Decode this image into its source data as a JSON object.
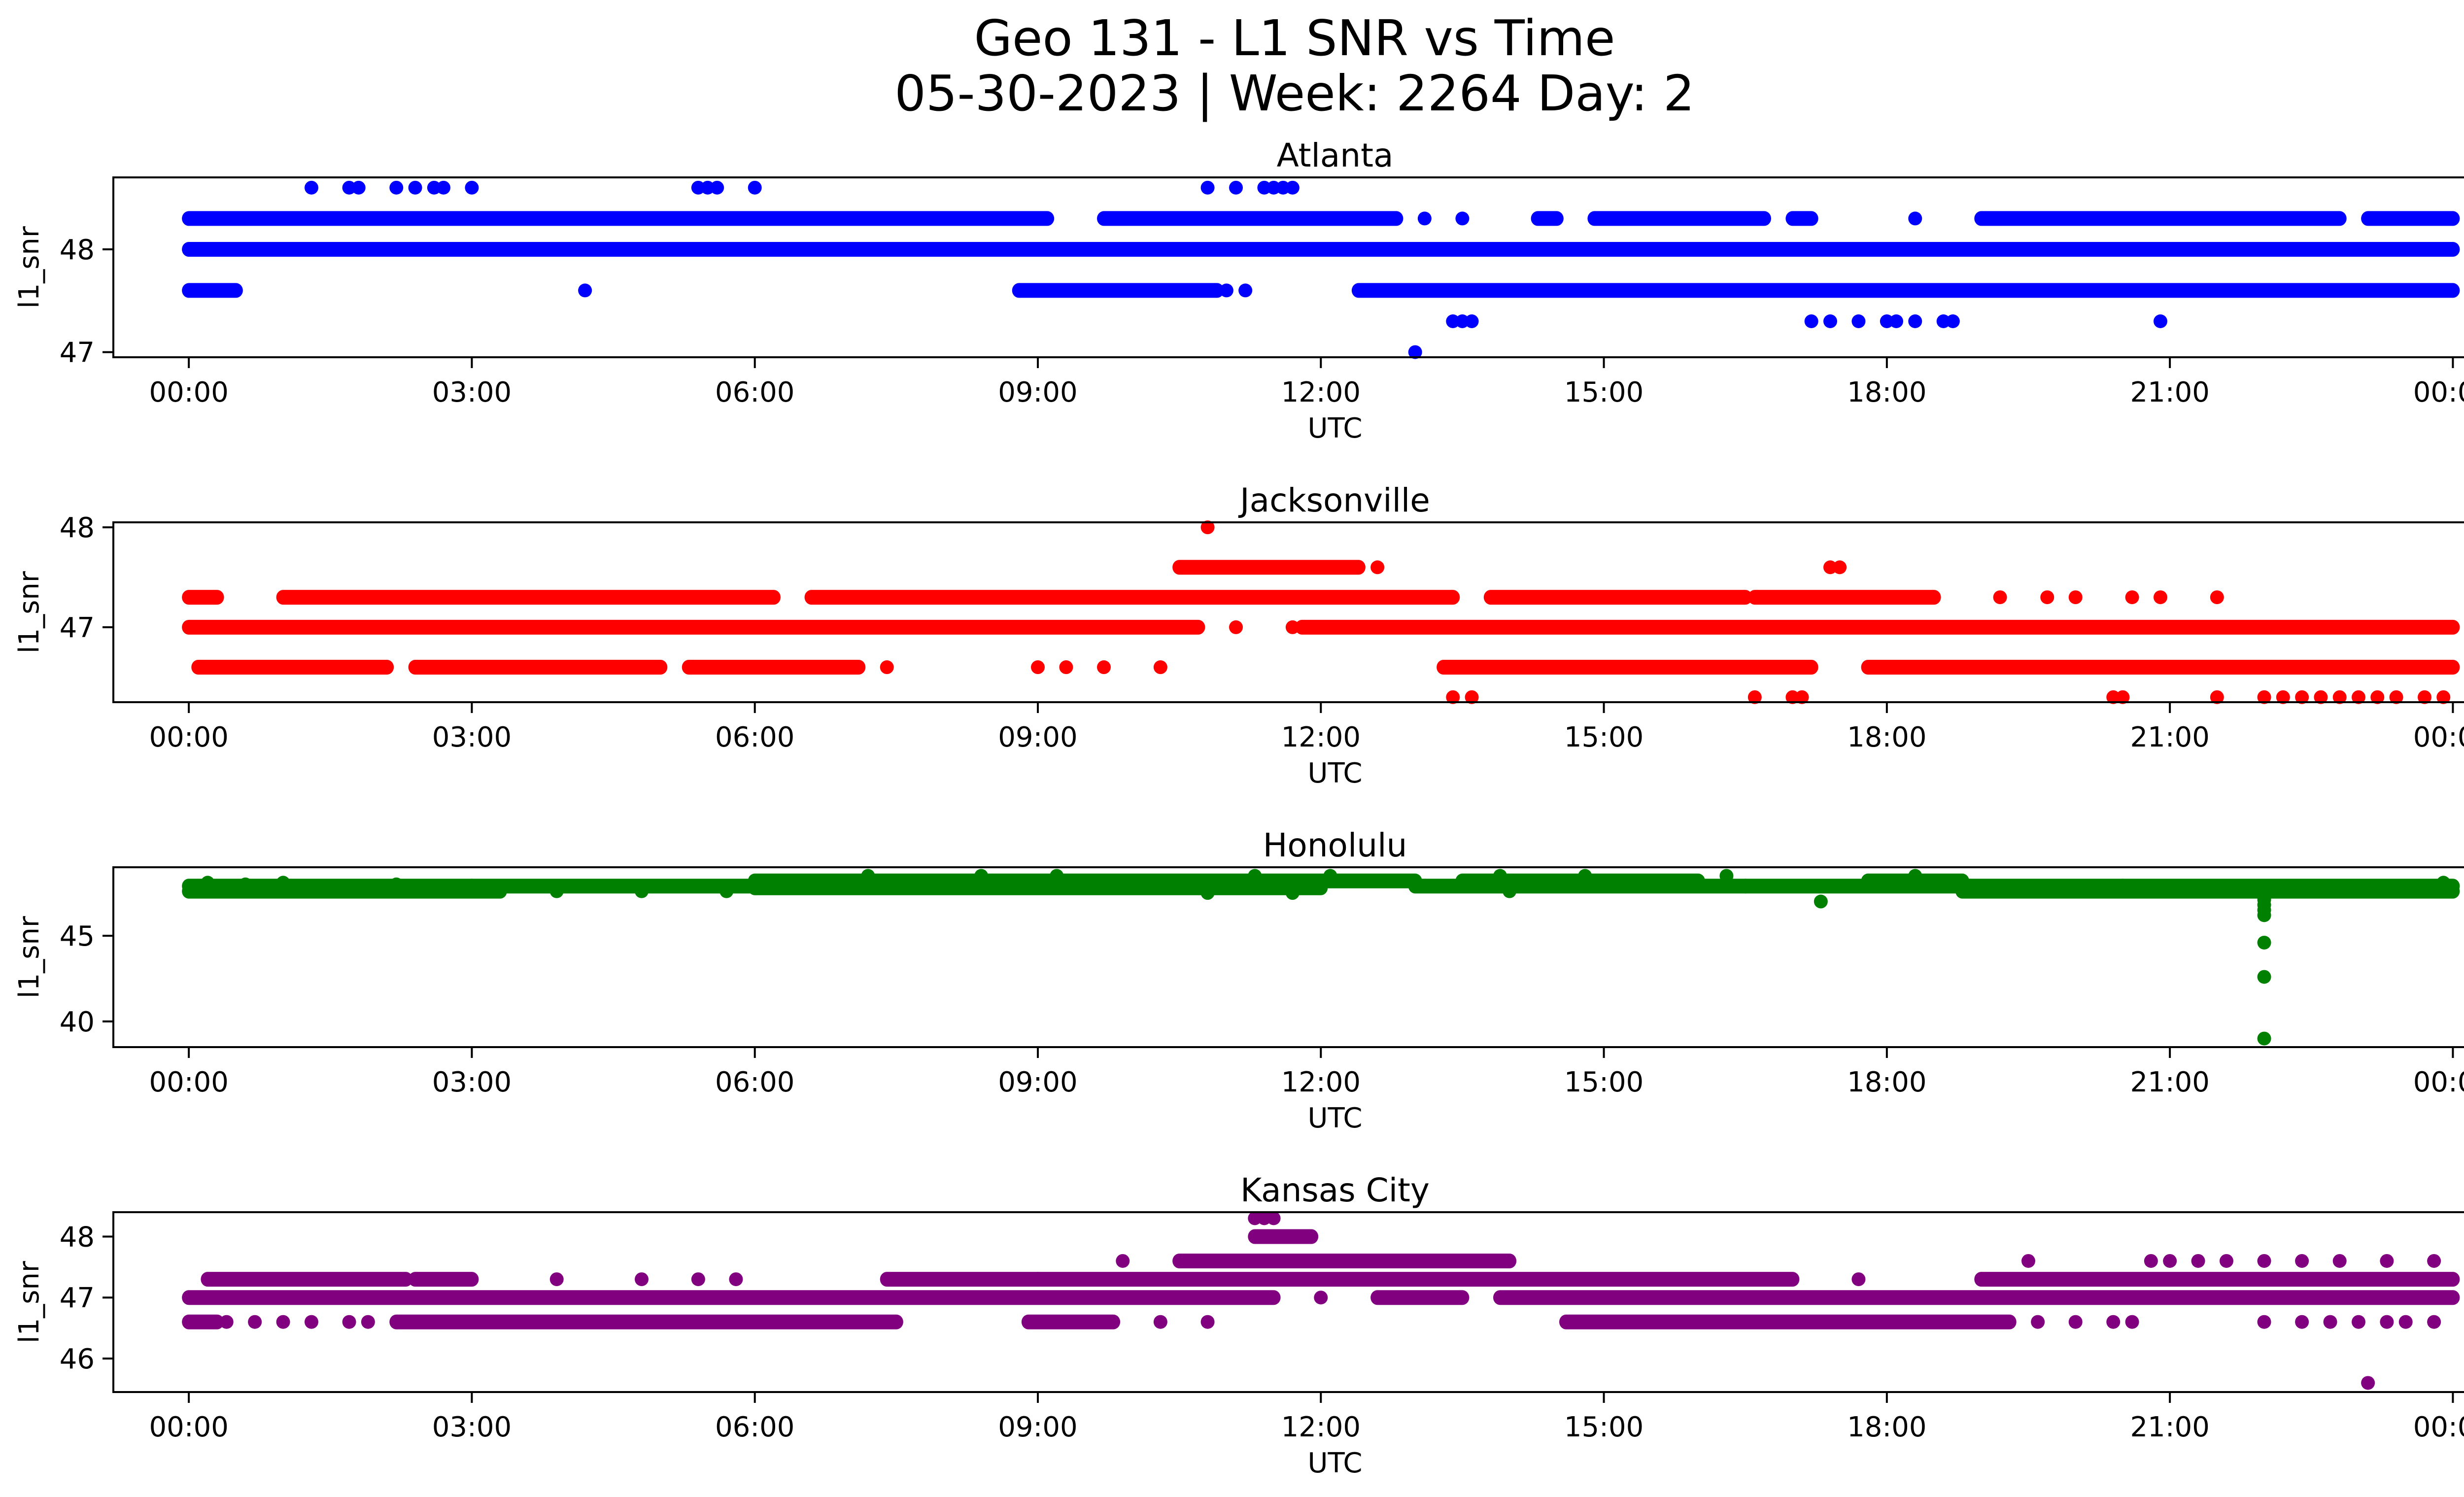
{
  "figure": {
    "title_line1": "Geo 131 - L1 SNR vs Time",
    "title_line2": "05-30-2023 | Week: 2264 Day: 2"
  },
  "chart_data": [
    {
      "type": "scatter",
      "title": "Atlanta",
      "xlabel": "UTC",
      "ylabel": "l1_snr",
      "color": "#0000ff",
      "xlim": [
        -0.8,
        25.1
      ],
      "ylim": [
        46.95,
        48.7
      ],
      "xticks": [
        "00:00",
        "03:00",
        "06:00",
        "09:00",
        "12:00",
        "15:00",
        "18:00",
        "21:00",
        "00:00"
      ],
      "yticks": [
        47,
        48
      ],
      "bands": [
        {
          "y": 48.0,
          "segments": [
            [
              0.0,
              24.0
            ]
          ]
        },
        {
          "y": 48.3,
          "segments": [
            [
              0.0,
              9.1
            ],
            [
              9.7,
              12.8
            ],
            [
              14.3,
              14.5
            ],
            [
              14.9,
              16.7
            ],
            [
              17.0,
              17.2
            ],
            [
              19.0,
              22.8
            ],
            [
              23.1,
              24.0
            ]
          ]
        },
        {
          "y": 47.6,
          "segments": [
            [
              0.0,
              0.5
            ],
            [
              8.8,
              10.9
            ],
            [
              12.4,
              24.0
            ]
          ]
        }
      ],
      "points": [
        {
          "x": 1.3,
          "y": 48.6
        },
        {
          "x": 1.7,
          "y": 48.6
        },
        {
          "x": 1.8,
          "y": 48.6
        },
        {
          "x": 2.2,
          "y": 48.6
        },
        {
          "x": 2.4,
          "y": 48.6
        },
        {
          "x": 2.6,
          "y": 48.6
        },
        {
          "x": 2.7,
          "y": 48.6
        },
        {
          "x": 3.0,
          "y": 48.6
        },
        {
          "x": 5.4,
          "y": 48.6
        },
        {
          "x": 5.5,
          "y": 48.6
        },
        {
          "x": 5.6,
          "y": 48.6
        },
        {
          "x": 6.0,
          "y": 48.6
        },
        {
          "x": 10.8,
          "y": 48.6
        },
        {
          "x": 11.1,
          "y": 48.6
        },
        {
          "x": 11.4,
          "y": 48.6
        },
        {
          "x": 11.5,
          "y": 48.6
        },
        {
          "x": 11.6,
          "y": 48.6
        },
        {
          "x": 11.7,
          "y": 48.6
        },
        {
          "x": 13.1,
          "y": 48.3
        },
        {
          "x": 13.5,
          "y": 48.3
        },
        {
          "x": 18.3,
          "y": 48.3
        },
        {
          "x": 4.2,
          "y": 47.6
        },
        {
          "x": 11.0,
          "y": 47.6
        },
        {
          "x": 11.2,
          "y": 47.6
        },
        {
          "x": 13.4,
          "y": 47.3
        },
        {
          "x": 13.5,
          "y": 47.3
        },
        {
          "x": 13.6,
          "y": 47.3
        },
        {
          "x": 17.2,
          "y": 47.3
        },
        {
          "x": 17.4,
          "y": 47.3
        },
        {
          "x": 17.7,
          "y": 47.3
        },
        {
          "x": 18.0,
          "y": 47.3
        },
        {
          "x": 18.1,
          "y": 47.3
        },
        {
          "x": 18.3,
          "y": 47.3
        },
        {
          "x": 18.6,
          "y": 47.3
        },
        {
          "x": 18.7,
          "y": 47.3
        },
        {
          "x": 20.9,
          "y": 47.3
        },
        {
          "x": 13.0,
          "y": 47.0
        }
      ]
    },
    {
      "type": "scatter",
      "title": "Jacksonville",
      "xlabel": "UTC",
      "ylabel": "l1_snr",
      "color": "#ff0000",
      "xlim": [
        -0.8,
        25.1
      ],
      "ylim": [
        46.25,
        48.05
      ],
      "xticks": [
        "00:00",
        "03:00",
        "06:00",
        "09:00",
        "12:00",
        "15:00",
        "18:00",
        "21:00",
        "00:00"
      ],
      "yticks": [
        47,
        48
      ],
      "bands": [
        {
          "y": 47.0,
          "segments": [
            [
              0.0,
              10.7
            ],
            [
              11.8,
              24.0
            ]
          ]
        },
        {
          "y": 47.3,
          "segments": [
            [
              0.0,
              0.3
            ],
            [
              1.0,
              6.2
            ],
            [
              6.6,
              13.4
            ],
            [
              13.8,
              16.5
            ],
            [
              16.6,
              18.5
            ]
          ]
        },
        {
          "y": 46.6,
          "segments": [
            [
              0.1,
              2.1
            ],
            [
              2.4,
              5.0
            ],
            [
              5.3,
              7.1
            ],
            [
              13.3,
              17.2
            ],
            [
              17.8,
              24.0
            ]
          ]
        },
        {
          "y": 47.6,
          "segments": [
            [
              10.5,
              12.4
            ]
          ]
        }
      ],
      "points": [
        {
          "x": 10.8,
          "y": 48.0
        },
        {
          "x": 12.6,
          "y": 47.6
        },
        {
          "x": 17.4,
          "y": 47.6
        },
        {
          "x": 17.5,
          "y": 47.6
        },
        {
          "x": 13.8,
          "y": 47.3
        },
        {
          "x": 14.4,
          "y": 47.3
        },
        {
          "x": 14.7,
          "y": 47.3
        },
        {
          "x": 19.2,
          "y": 47.3
        },
        {
          "x": 19.7,
          "y": 47.3
        },
        {
          "x": 20.0,
          "y": 47.3
        },
        {
          "x": 20.6,
          "y": 47.3
        },
        {
          "x": 20.9,
          "y": 47.3
        },
        {
          "x": 21.5,
          "y": 47.3
        },
        {
          "x": 10.6,
          "y": 47.0
        },
        {
          "x": 11.1,
          "y": 47.0
        },
        {
          "x": 11.7,
          "y": 47.0
        },
        {
          "x": 7.4,
          "y": 46.6
        },
        {
          "x": 9.0,
          "y": 46.6
        },
        {
          "x": 9.3,
          "y": 46.6
        },
        {
          "x": 9.7,
          "y": 46.6
        },
        {
          "x": 10.3,
          "y": 46.6
        },
        {
          "x": 13.4,
          "y": 46.3
        },
        {
          "x": 13.6,
          "y": 46.3
        },
        {
          "x": 16.6,
          "y": 46.3
        },
        {
          "x": 17.0,
          "y": 46.3
        },
        {
          "x": 17.1,
          "y": 46.3
        },
        {
          "x": 20.4,
          "y": 46.3
        },
        {
          "x": 20.5,
          "y": 46.3
        },
        {
          "x": 21.5,
          "y": 46.3
        },
        {
          "x": 22.0,
          "y": 46.3
        },
        {
          "x": 22.2,
          "y": 46.3
        },
        {
          "x": 22.4,
          "y": 46.3
        },
        {
          "x": 22.6,
          "y": 46.3
        },
        {
          "x": 22.8,
          "y": 46.3
        },
        {
          "x": 23.0,
          "y": 46.3
        },
        {
          "x": 23.2,
          "y": 46.3
        },
        {
          "x": 23.4,
          "y": 46.3
        },
        {
          "x": 23.7,
          "y": 46.3
        },
        {
          "x": 23.9,
          "y": 46.3
        }
      ]
    },
    {
      "type": "scatter",
      "title": "Honolulu",
      "xlabel": "UTC",
      "ylabel": "l1_snr",
      "color": "#008000",
      "xlim": [
        -0.8,
        25.1
      ],
      "ylim": [
        38.5,
        49.0
      ],
      "xticks": [
        "00:00",
        "03:00",
        "06:00",
        "09:00",
        "12:00",
        "15:00",
        "18:00",
        "21:00",
        "00:00"
      ],
      "yticks": [
        40,
        45
      ],
      "bands": [
        {
          "y": 47.6,
          "segments": [
            [
              0.0,
              3.3
            ],
            [
              18.8,
              24.0
            ]
          ]
        },
        {
          "y": 47.9,
          "segments": [
            [
              0.0,
              3.0
            ],
            [
              3.0,
              6.0
            ],
            [
              13.0,
              16.5
            ],
            [
              16.5,
              20.5
            ],
            [
              20.5,
              24.0
            ]
          ]
        },
        {
          "y": 48.2,
          "segments": [
            [
              6.0,
              13.0
            ],
            [
              13.5,
              16.0
            ],
            [
              17.8,
              18.8
            ]
          ]
        },
        {
          "y": 47.8,
          "segments": [
            [
              6.0,
              12.0
            ]
          ]
        }
      ],
      "points": [
        {
          "x": 0.2,
          "y": 48.1
        },
        {
          "x": 0.6,
          "y": 48.0
        },
        {
          "x": 1.0,
          "y": 48.1
        },
        {
          "x": 2.2,
          "y": 48.0
        },
        {
          "x": 3.9,
          "y": 47.6
        },
        {
          "x": 4.8,
          "y": 47.6
        },
        {
          "x": 5.7,
          "y": 47.6
        },
        {
          "x": 7.2,
          "y": 48.5
        },
        {
          "x": 8.4,
          "y": 48.5
        },
        {
          "x": 9.2,
          "y": 48.5
        },
        {
          "x": 11.3,
          "y": 48.5
        },
        {
          "x": 12.1,
          "y": 48.5
        },
        {
          "x": 13.9,
          "y": 48.5
        },
        {
          "x": 14.8,
          "y": 48.5
        },
        {
          "x": 16.3,
          "y": 48.5
        },
        {
          "x": 18.3,
          "y": 48.5
        },
        {
          "x": 10.8,
          "y": 47.5
        },
        {
          "x": 11.7,
          "y": 47.5
        },
        {
          "x": 14.0,
          "y": 47.6
        },
        {
          "x": 17.3,
          "y": 47.0
        },
        {
          "x": 22.0,
          "y": 47.1
        },
        {
          "x": 22.0,
          "y": 46.8
        },
        {
          "x": 22.0,
          "y": 46.5
        },
        {
          "x": 22.0,
          "y": 46.2
        },
        {
          "x": 22.0,
          "y": 44.6
        },
        {
          "x": 22.0,
          "y": 42.6
        },
        {
          "x": 22.0,
          "y": 39.0
        },
        {
          "x": 23.9,
          "y": 48.1
        }
      ]
    },
    {
      "type": "scatter",
      "title": "Kansas City",
      "xlabel": "UTC",
      "ylabel": "l1_snr",
      "color": "#800080",
      "xlim": [
        -0.8,
        25.1
      ],
      "ylim": [
        45.45,
        48.4
      ],
      "xticks": [
        "00:00",
        "03:00",
        "06:00",
        "09:00",
        "12:00",
        "15:00",
        "18:00",
        "21:00",
        "00:00"
      ],
      "yticks": [
        46,
        47,
        48
      ],
      "bands": [
        {
          "y": 47.0,
          "segments": [
            [
              0.0,
              11.5
            ],
            [
              12.6,
              13.5
            ],
            [
              13.9,
              24.0
            ]
          ]
        },
        {
          "y": 47.3,
          "segments": [
            [
              0.2,
              2.3
            ],
            [
              2.4,
              3.0
            ],
            [
              7.4,
              9.0
            ],
            [
              9.0,
              17.0
            ],
            [
              19.0,
              24.0
            ]
          ]
        },
        {
          "y": 46.6,
          "segments": [
            [
              0.0,
              0.3
            ],
            [
              2.2,
              7.5
            ],
            [
              8.9,
              9.8
            ],
            [
              14.6,
              19.3
            ]
          ]
        },
        {
          "y": 47.6,
          "segments": [
            [
              10.5,
              11.5
            ],
            [
              11.4,
              14.0
            ]
          ]
        },
        {
          "y": 48.0,
          "segments": [
            [
              11.3,
              11.9
            ]
          ]
        }
      ],
      "points": [
        {
          "x": 11.3,
          "y": 48.3
        },
        {
          "x": 11.4,
          "y": 48.3
        },
        {
          "x": 11.5,
          "y": 48.3
        },
        {
          "x": 9.9,
          "y": 47.6
        },
        {
          "x": 19.5,
          "y": 47.6
        },
        {
          "x": 20.8,
          "y": 47.6
        },
        {
          "x": 21.0,
          "y": 47.6
        },
        {
          "x": 21.3,
          "y": 47.6
        },
        {
          "x": 21.6,
          "y": 47.6
        },
        {
          "x": 22.0,
          "y": 47.6
        },
        {
          "x": 22.4,
          "y": 47.6
        },
        {
          "x": 22.8,
          "y": 47.6
        },
        {
          "x": 23.3,
          "y": 47.6
        },
        {
          "x": 23.8,
          "y": 47.6
        },
        {
          "x": 3.9,
          "y": 47.3
        },
        {
          "x": 4.8,
          "y": 47.3
        },
        {
          "x": 5.4,
          "y": 47.3
        },
        {
          "x": 5.8,
          "y": 47.3
        },
        {
          "x": 17.7,
          "y": 47.3
        },
        {
          "x": 12.0,
          "y": 47.0
        },
        {
          "x": 0.4,
          "y": 46.6
        },
        {
          "x": 0.7,
          "y": 46.6
        },
        {
          "x": 1.0,
          "y": 46.6
        },
        {
          "x": 1.3,
          "y": 46.6
        },
        {
          "x": 1.7,
          "y": 46.6
        },
        {
          "x": 1.9,
          "y": 46.6
        },
        {
          "x": 10.3,
          "y": 46.6
        },
        {
          "x": 10.8,
          "y": 46.6
        },
        {
          "x": 19.6,
          "y": 46.6
        },
        {
          "x": 20.0,
          "y": 46.6
        },
        {
          "x": 20.4,
          "y": 46.6
        },
        {
          "x": 20.6,
          "y": 46.6
        },
        {
          "x": 22.0,
          "y": 46.6
        },
        {
          "x": 22.4,
          "y": 46.6
        },
        {
          "x": 22.7,
          "y": 46.6
        },
        {
          "x": 23.0,
          "y": 46.6
        },
        {
          "x": 23.3,
          "y": 46.6
        },
        {
          "x": 23.5,
          "y": 46.6
        },
        {
          "x": 23.8,
          "y": 46.6
        },
        {
          "x": 23.1,
          "y": 45.6
        }
      ]
    }
  ]
}
